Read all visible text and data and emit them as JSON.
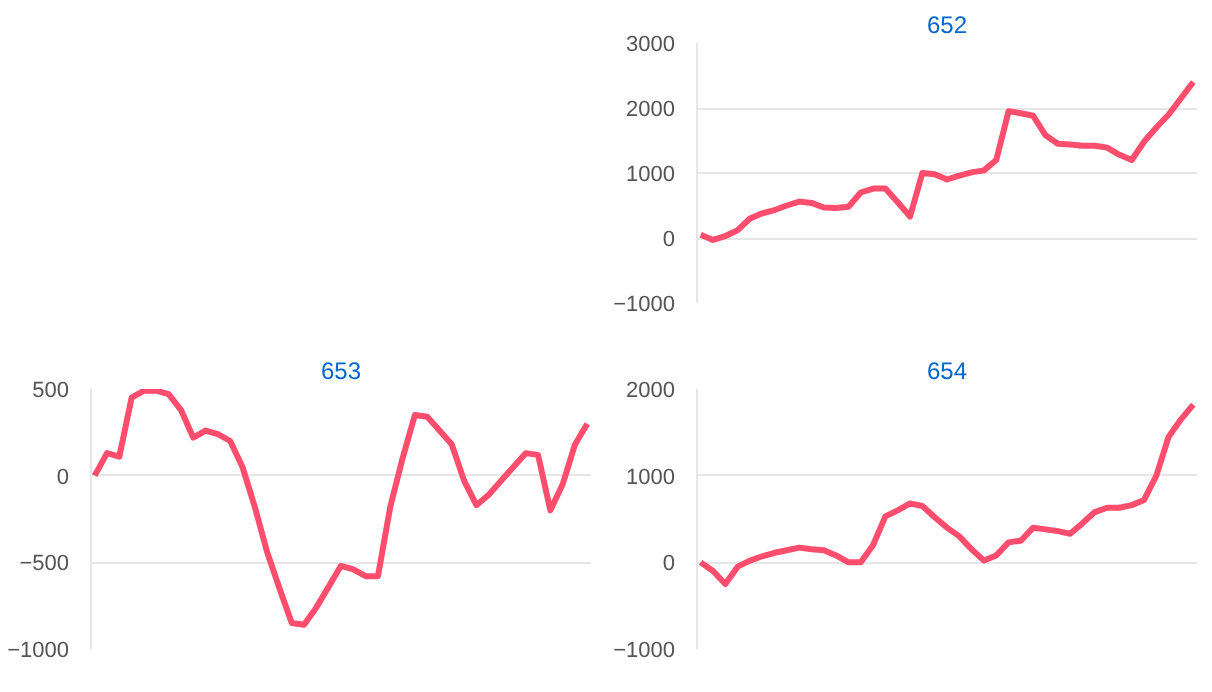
{
  "chart_data": [
    {
      "type": "line",
      "title": "652",
      "categories": [
        null,
        null,
        null,
        null,
        null,
        null,
        null,
        null,
        null,
        null,
        null,
        null,
        null,
        null,
        null,
        null,
        null,
        null,
        null,
        null,
        null,
        null,
        null,
        null,
        null,
        null,
        null,
        null,
        null,
        null,
        null,
        null,
        null,
        null,
        null,
        null,
        null,
        null,
        null,
        null,
        null
      ],
      "series": [
        {
          "color": "#ff4d6d",
          "values": [
            50,
            -30,
            30,
            120,
            300,
            380,
            430,
            500,
            560,
            540,
            470,
            460,
            480,
            700,
            760,
            760,
            550,
            330,
            1000,
            980,
            900,
            960,
            1010,
            1040,
            1200,
            1950,
            1920,
            1880,
            1580,
            1450,
            1440,
            1420,
            1420,
            1390,
            1280,
            1200,
            1480,
            1700,
            1900,
            2150,
            2400
          ]
        }
      ],
      "ylim": [
        -1000,
        3000
      ],
      "yticks": [
        -1000,
        0,
        1000,
        2000,
        3000
      ],
      "grid": "y",
      "tick_labels": "y"
    },
    {
      "type": "line",
      "title": "653",
      "categories": [
        null,
        null,
        null,
        null,
        null,
        null,
        null,
        null,
        null,
        null,
        null,
        null,
        null,
        null,
        null,
        null,
        null,
        null,
        null,
        null,
        null,
        null,
        null,
        null,
        null,
        null,
        null,
        null,
        null,
        null,
        null,
        null,
        null,
        null,
        null,
        null,
        null,
        null,
        null,
        null,
        null
      ],
      "series": [
        {
          "color": "#ff4d6d",
          "values": [
            0,
            130,
            110,
            450,
            490,
            490,
            470,
            380,
            220,
            260,
            240,
            200,
            50,
            -180,
            -440,
            -650,
            -850,
            -860,
            -760,
            -640,
            -520,
            -540,
            -580,
            -580,
            -180,
            100,
            350,
            340,
            260,
            180,
            -30,
            -170,
            -110,
            -30,
            50,
            130,
            120,
            -200,
            -50,
            180,
            300
          ]
        }
      ],
      "ylim": [
        -1000,
        500
      ],
      "yticks": [
        -1000,
        -500,
        0,
        500
      ],
      "grid": "y",
      "tick_labels": "y"
    },
    {
      "type": "line",
      "title": "654",
      "categories": [
        null,
        null,
        null,
        null,
        null,
        null,
        null,
        null,
        null,
        null,
        null,
        null,
        null,
        null,
        null,
        null,
        null,
        null,
        null,
        null,
        null,
        null,
        null,
        null,
        null,
        null,
        null,
        null,
        null,
        null,
        null,
        null,
        null,
        null,
        null,
        null,
        null,
        null,
        null,
        null,
        null
      ],
      "series": [
        {
          "color": "#ff4d6d",
          "values": [
            0,
            -100,
            -250,
            -50,
            20,
            70,
            110,
            140,
            170,
            150,
            140,
            80,
            0,
            0,
            200,
            530,
            600,
            680,
            650,
            520,
            400,
            300,
            150,
            20,
            80,
            230,
            250,
            400,
            380,
            360,
            330,
            450,
            580,
            630,
            630,
            660,
            720,
            1000,
            1450,
            1650,
            1820
          ]
        }
      ],
      "ylim": [
        -1000,
        2000
      ],
      "yticks": [
        -1000,
        0,
        1000,
        2000
      ],
      "grid": "y",
      "tick_labels": "y"
    }
  ]
}
